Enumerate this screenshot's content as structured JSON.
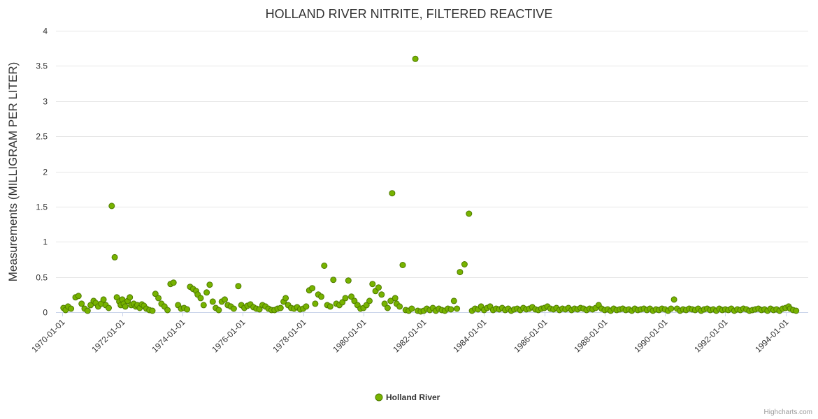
{
  "credits": "Highcharts.com",
  "chart_data": {
    "type": "scatter",
    "title": "HOLLAND RIVER NITRITE, FILTERED REACTIVE",
    "xlabel": "",
    "ylabel": "Measurements (MILLIGRAM PER LITER)",
    "ylim": [
      0,
      4
    ],
    "xlim": [
      1969.8,
      1994.75
    ],
    "y_ticks": [
      0,
      0.5,
      1,
      1.5,
      2,
      2.5,
      3,
      3.5,
      4
    ],
    "x_ticks": [
      1970,
      1972,
      1974,
      1976,
      1978,
      1980,
      1982,
      1984,
      1986,
      1988,
      1990,
      1992,
      1994
    ],
    "x_tick_labels": [
      "1970-01-01",
      "1972-01-01",
      "1974-01-01",
      "1976-01-01",
      "1978-01-01",
      "1980-01-01",
      "1982-01-01",
      "1984-01-01",
      "1986-01-01",
      "1988-01-01",
      "1990-01-01",
      "1992-01-01",
      "1994-01-01"
    ],
    "grid": true,
    "legend_position": "bottom",
    "marker_color": "#77b300",
    "marker_line_color": "#4e7a00",
    "series": [
      {
        "name": "Holland River",
        "data": [
          [
            1970.05,
            0.06
          ],
          [
            1970.12,
            0.03
          ],
          [
            1970.2,
            0.08
          ],
          [
            1970.3,
            0.05
          ],
          [
            1970.45,
            0.21
          ],
          [
            1970.55,
            0.23
          ],
          [
            1970.65,
            0.12
          ],
          [
            1970.75,
            0.05
          ],
          [
            1970.85,
            0.02
          ],
          [
            1970.95,
            0.1
          ],
          [
            1971.05,
            0.16
          ],
          [
            1971.12,
            0.13
          ],
          [
            1971.2,
            0.08
          ],
          [
            1971.3,
            0.12
          ],
          [
            1971.38,
            0.18
          ],
          [
            1971.45,
            0.1
          ],
          [
            1971.55,
            0.06
          ],
          [
            1971.65,
            1.51
          ],
          [
            1971.75,
            0.78
          ],
          [
            1971.82,
            0.21
          ],
          [
            1971.9,
            0.15
          ],
          [
            1971.95,
            0.1
          ],
          [
            1972.0,
            0.18
          ],
          [
            1972.05,
            0.12
          ],
          [
            1972.1,
            0.08
          ],
          [
            1972.18,
            0.16
          ],
          [
            1972.25,
            0.21
          ],
          [
            1972.3,
            0.1
          ],
          [
            1972.38,
            0.12
          ],
          [
            1972.45,
            0.08
          ],
          [
            1972.5,
            0.1
          ],
          [
            1972.58,
            0.06
          ],
          [
            1972.65,
            0.11
          ],
          [
            1972.72,
            0.09
          ],
          [
            1972.8,
            0.05
          ],
          [
            1972.9,
            0.03
          ],
          [
            1973.0,
            0.02
          ],
          [
            1973.1,
            0.26
          ],
          [
            1973.2,
            0.2
          ],
          [
            1973.3,
            0.12
          ],
          [
            1973.4,
            0.08
          ],
          [
            1973.5,
            0.03
          ],
          [
            1973.6,
            0.4
          ],
          [
            1973.7,
            0.42
          ],
          [
            1973.85,
            0.1
          ],
          [
            1973.95,
            0.05
          ],
          [
            1974.05,
            0.06
          ],
          [
            1974.15,
            0.04
          ],
          [
            1974.25,
            0.36
          ],
          [
            1974.35,
            0.33
          ],
          [
            1974.45,
            0.3
          ],
          [
            1974.5,
            0.25
          ],
          [
            1974.6,
            0.2
          ],
          [
            1974.7,
            0.1
          ],
          [
            1974.8,
            0.28
          ],
          [
            1974.9,
            0.39
          ],
          [
            1975.0,
            0.15
          ],
          [
            1975.1,
            0.06
          ],
          [
            1975.2,
            0.03
          ],
          [
            1975.3,
            0.15
          ],
          [
            1975.4,
            0.18
          ],
          [
            1975.5,
            0.1
          ],
          [
            1975.6,
            0.08
          ],
          [
            1975.7,
            0.05
          ],
          [
            1975.85,
            0.37
          ],
          [
            1975.95,
            0.1
          ],
          [
            1976.05,
            0.06
          ],
          [
            1976.15,
            0.09
          ],
          [
            1976.25,
            0.11
          ],
          [
            1976.35,
            0.07
          ],
          [
            1976.45,
            0.05
          ],
          [
            1976.55,
            0.04
          ],
          [
            1976.65,
            0.1
          ],
          [
            1976.75,
            0.08
          ],
          [
            1976.85,
            0.05
          ],
          [
            1976.95,
            0.03
          ],
          [
            1977.05,
            0.03
          ],
          [
            1977.15,
            0.05
          ],
          [
            1977.25,
            0.06
          ],
          [
            1977.35,
            0.15
          ],
          [
            1977.42,
            0.2
          ],
          [
            1977.5,
            0.1
          ],
          [
            1977.6,
            0.06
          ],
          [
            1977.7,
            0.05
          ],
          [
            1977.8,
            0.07
          ],
          [
            1977.9,
            0.04
          ],
          [
            1978.0,
            0.05
          ],
          [
            1978.1,
            0.08
          ],
          [
            1978.2,
            0.31
          ],
          [
            1978.3,
            0.34
          ],
          [
            1978.4,
            0.12
          ],
          [
            1978.5,
            0.25
          ],
          [
            1978.6,
            0.22
          ],
          [
            1978.7,
            0.66
          ],
          [
            1978.8,
            0.1
          ],
          [
            1978.9,
            0.08
          ],
          [
            1979.0,
            0.46
          ],
          [
            1979.1,
            0.12
          ],
          [
            1979.2,
            0.1
          ],
          [
            1979.3,
            0.14
          ],
          [
            1979.4,
            0.2
          ],
          [
            1979.5,
            0.45
          ],
          [
            1979.6,
            0.22
          ],
          [
            1979.7,
            0.16
          ],
          [
            1979.8,
            0.1
          ],
          [
            1979.9,
            0.05
          ],
          [
            1980.0,
            0.06
          ],
          [
            1980.1,
            0.1
          ],
          [
            1980.2,
            0.16
          ],
          [
            1980.3,
            0.4
          ],
          [
            1980.4,
            0.3
          ],
          [
            1980.5,
            0.35
          ],
          [
            1980.6,
            0.25
          ],
          [
            1980.7,
            0.12
          ],
          [
            1980.8,
            0.06
          ],
          [
            1980.9,
            0.16
          ],
          [
            1980.95,
            1.69
          ],
          [
            1981.05,
            0.2
          ],
          [
            1981.1,
            0.12
          ],
          [
            1981.2,
            0.08
          ],
          [
            1981.3,
            0.67
          ],
          [
            1981.4,
            0.03
          ],
          [
            1981.5,
            0.02
          ],
          [
            1981.6,
            0.05
          ],
          [
            1981.72,
            3.6
          ],
          [
            1981.8,
            0.02
          ],
          [
            1981.9,
            0.01
          ],
          [
            1982.0,
            0.02
          ],
          [
            1982.1,
            0.05
          ],
          [
            1982.2,
            0.03
          ],
          [
            1982.3,
            0.06
          ],
          [
            1982.4,
            0.02
          ],
          [
            1982.5,
            0.05
          ],
          [
            1982.6,
            0.03
          ],
          [
            1982.7,
            0.02
          ],
          [
            1982.8,
            0.05
          ],
          [
            1982.9,
            0.04
          ],
          [
            1983.0,
            0.16
          ],
          [
            1983.1,
            0.05
          ],
          [
            1983.2,
            0.57
          ],
          [
            1983.35,
            0.68
          ],
          [
            1983.5,
            1.4
          ],
          [
            1983.6,
            0.02
          ],
          [
            1983.7,
            0.05
          ],
          [
            1983.8,
            0.04
          ],
          [
            1983.9,
            0.08
          ],
          [
            1984.0,
            0.03
          ],
          [
            1984.1,
            0.06
          ],
          [
            1984.2,
            0.08
          ],
          [
            1984.3,
            0.03
          ],
          [
            1984.4,
            0.05
          ],
          [
            1984.5,
            0.04
          ],
          [
            1984.6,
            0.06
          ],
          [
            1984.7,
            0.03
          ],
          [
            1984.8,
            0.05
          ],
          [
            1984.9,
            0.02
          ],
          [
            1985.0,
            0.04
          ],
          [
            1985.1,
            0.05
          ],
          [
            1985.2,
            0.03
          ],
          [
            1985.3,
            0.06
          ],
          [
            1985.4,
            0.04
          ],
          [
            1985.5,
            0.05
          ],
          [
            1985.6,
            0.07
          ],
          [
            1985.7,
            0.04
          ],
          [
            1985.8,
            0.03
          ],
          [
            1985.9,
            0.05
          ],
          [
            1986.0,
            0.06
          ],
          [
            1986.1,
            0.08
          ],
          [
            1986.2,
            0.05
          ],
          [
            1986.3,
            0.04
          ],
          [
            1986.4,
            0.06
          ],
          [
            1986.5,
            0.03
          ],
          [
            1986.6,
            0.05
          ],
          [
            1986.7,
            0.04
          ],
          [
            1986.8,
            0.06
          ],
          [
            1986.9,
            0.03
          ],
          [
            1987.0,
            0.05
          ],
          [
            1987.1,
            0.04
          ],
          [
            1987.2,
            0.06
          ],
          [
            1987.3,
            0.05
          ],
          [
            1987.4,
            0.03
          ],
          [
            1987.5,
            0.05
          ],
          [
            1987.6,
            0.04
          ],
          [
            1987.7,
            0.06
          ],
          [
            1987.8,
            0.1
          ],
          [
            1987.9,
            0.05
          ],
          [
            1988.0,
            0.03
          ],
          [
            1988.1,
            0.04
          ],
          [
            1988.2,
            0.02
          ],
          [
            1988.3,
            0.05
          ],
          [
            1988.4,
            0.03
          ],
          [
            1988.5,
            0.04
          ],
          [
            1988.6,
            0.05
          ],
          [
            1988.7,
            0.03
          ],
          [
            1988.8,
            0.04
          ],
          [
            1988.9,
            0.02
          ],
          [
            1989.0,
            0.05
          ],
          [
            1989.1,
            0.03
          ],
          [
            1989.2,
            0.04
          ],
          [
            1989.3,
            0.05
          ],
          [
            1989.4,
            0.03
          ],
          [
            1989.5,
            0.05
          ],
          [
            1989.6,
            0.02
          ],
          [
            1989.7,
            0.04
          ],
          [
            1989.8,
            0.03
          ],
          [
            1989.9,
            0.05
          ],
          [
            1990.0,
            0.04
          ],
          [
            1990.1,
            0.02
          ],
          [
            1990.2,
            0.05
          ],
          [
            1990.3,
            0.18
          ],
          [
            1990.4,
            0.05
          ],
          [
            1990.5,
            0.02
          ],
          [
            1990.6,
            0.04
          ],
          [
            1990.7,
            0.03
          ],
          [
            1990.8,
            0.05
          ],
          [
            1990.9,
            0.04
          ],
          [
            1991.0,
            0.03
          ],
          [
            1991.1,
            0.05
          ],
          [
            1991.2,
            0.02
          ],
          [
            1991.3,
            0.04
          ],
          [
            1991.4,
            0.05
          ],
          [
            1991.5,
            0.03
          ],
          [
            1991.6,
            0.04
          ],
          [
            1991.7,
            0.02
          ],
          [
            1991.8,
            0.05
          ],
          [
            1991.9,
            0.03
          ],
          [
            1992.0,
            0.04
          ],
          [
            1992.1,
            0.03
          ],
          [
            1992.2,
            0.05
          ],
          [
            1992.3,
            0.02
          ],
          [
            1992.4,
            0.04
          ],
          [
            1992.5,
            0.03
          ],
          [
            1992.6,
            0.05
          ],
          [
            1992.7,
            0.04
          ],
          [
            1992.8,
            0.02
          ],
          [
            1992.9,
            0.03
          ],
          [
            1993.0,
            0.04
          ],
          [
            1993.1,
            0.05
          ],
          [
            1993.2,
            0.03
          ],
          [
            1993.3,
            0.04
          ],
          [
            1993.4,
            0.02
          ],
          [
            1993.5,
            0.05
          ],
          [
            1993.6,
            0.03
          ],
          [
            1993.7,
            0.04
          ],
          [
            1993.8,
            0.02
          ],
          [
            1993.9,
            0.05
          ],
          [
            1994.0,
            0.06
          ],
          [
            1994.1,
            0.08
          ],
          [
            1994.15,
            0.05
          ],
          [
            1994.25,
            0.03
          ],
          [
            1994.35,
            0.02
          ]
        ]
      }
    ]
  }
}
